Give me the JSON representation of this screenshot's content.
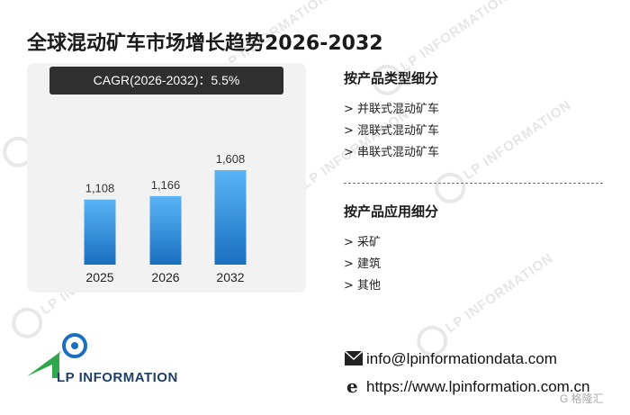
{
  "title": "全球混动矿车市场增长趋势2026-2032",
  "cagr_label": "CAGR(2026-2032)：5.5%",
  "chart_data": {
    "type": "bar",
    "categories": [
      "2025",
      "2026",
      "2032"
    ],
    "values": [
      1108,
      1166,
      1608
    ],
    "value_labels": [
      "1,108",
      "1,166",
      "1,608"
    ],
    "ylim": [
      0,
      1700
    ],
    "bar_color_top": "#5ab4f5",
    "bar_color_bottom": "#1a6fc0",
    "grid": false
  },
  "sidebar": {
    "type_heading": "按产品类型细分",
    "type_items": [
      "> 并联式混动矿车",
      "> 混联式混动矿车",
      "> 串联式混动矿车"
    ],
    "app_heading": "按产品应用细分",
    "app_items": [
      "> 采矿",
      "> 建筑",
      "> 其他"
    ]
  },
  "logo_text": "LP INFORMATION",
  "contact": {
    "email": "info@lpinformationdata.com",
    "website": "https://www.lpinformation.com.cn"
  },
  "watermark_text": "LP INFORMATION",
  "badge_text": "G 格隆汇"
}
